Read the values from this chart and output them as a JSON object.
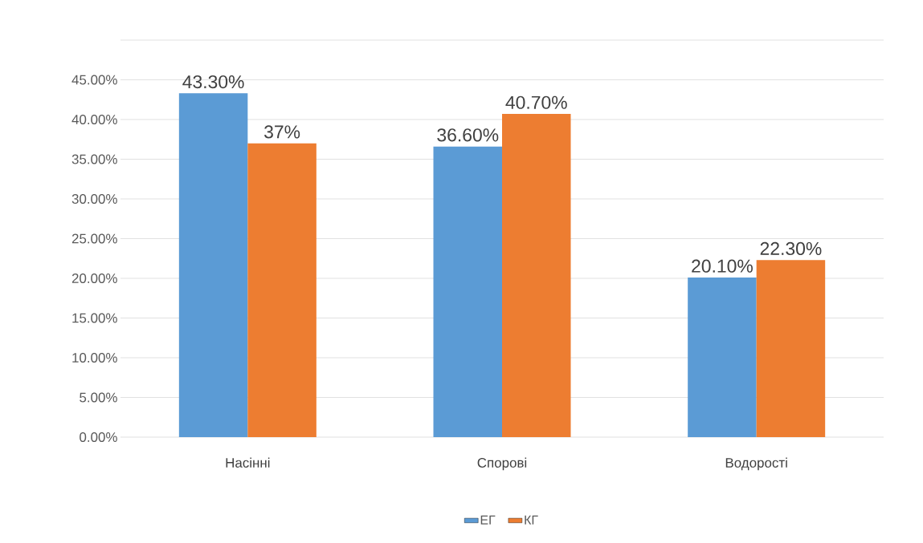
{
  "chart_data": {
    "type": "bar",
    "categories": [
      "Насінні",
      "Спорові",
      "Водорості"
    ],
    "series": [
      {
        "name": "ЕГ",
        "color": "#5b9bd5",
        "values": [
          43.3,
          36.6,
          20.1
        ],
        "value_labels": [
          "43.30%",
          "36.60%",
          "20.10%"
        ]
      },
      {
        "name": "КГ",
        "color": "#ed7d31",
        "values": [
          37,
          40.7,
          22.3
        ],
        "value_labels": [
          "37%",
          "40.70%",
          "22.30%"
        ]
      }
    ],
    "ylim": [
      0,
      50
    ],
    "yticks": [
      {
        "value": 0,
        "label": "0.00%"
      },
      {
        "value": 5,
        "label": "5.00%"
      },
      {
        "value": 10,
        "label": "10.00%"
      },
      {
        "value": 15,
        "label": "15.00%"
      },
      {
        "value": 20,
        "label": "20.00%"
      },
      {
        "value": 25,
        "label": "25.00%"
      },
      {
        "value": 30,
        "label": "30.00%"
      },
      {
        "value": 35,
        "label": "35.00%"
      },
      {
        "value": 40,
        "label": "40.00%"
      },
      {
        "value": 45,
        "label": "45.00%"
      },
      {
        "value": 50,
        "label": null
      }
    ],
    "grid": "y",
    "legend": "bottom"
  }
}
